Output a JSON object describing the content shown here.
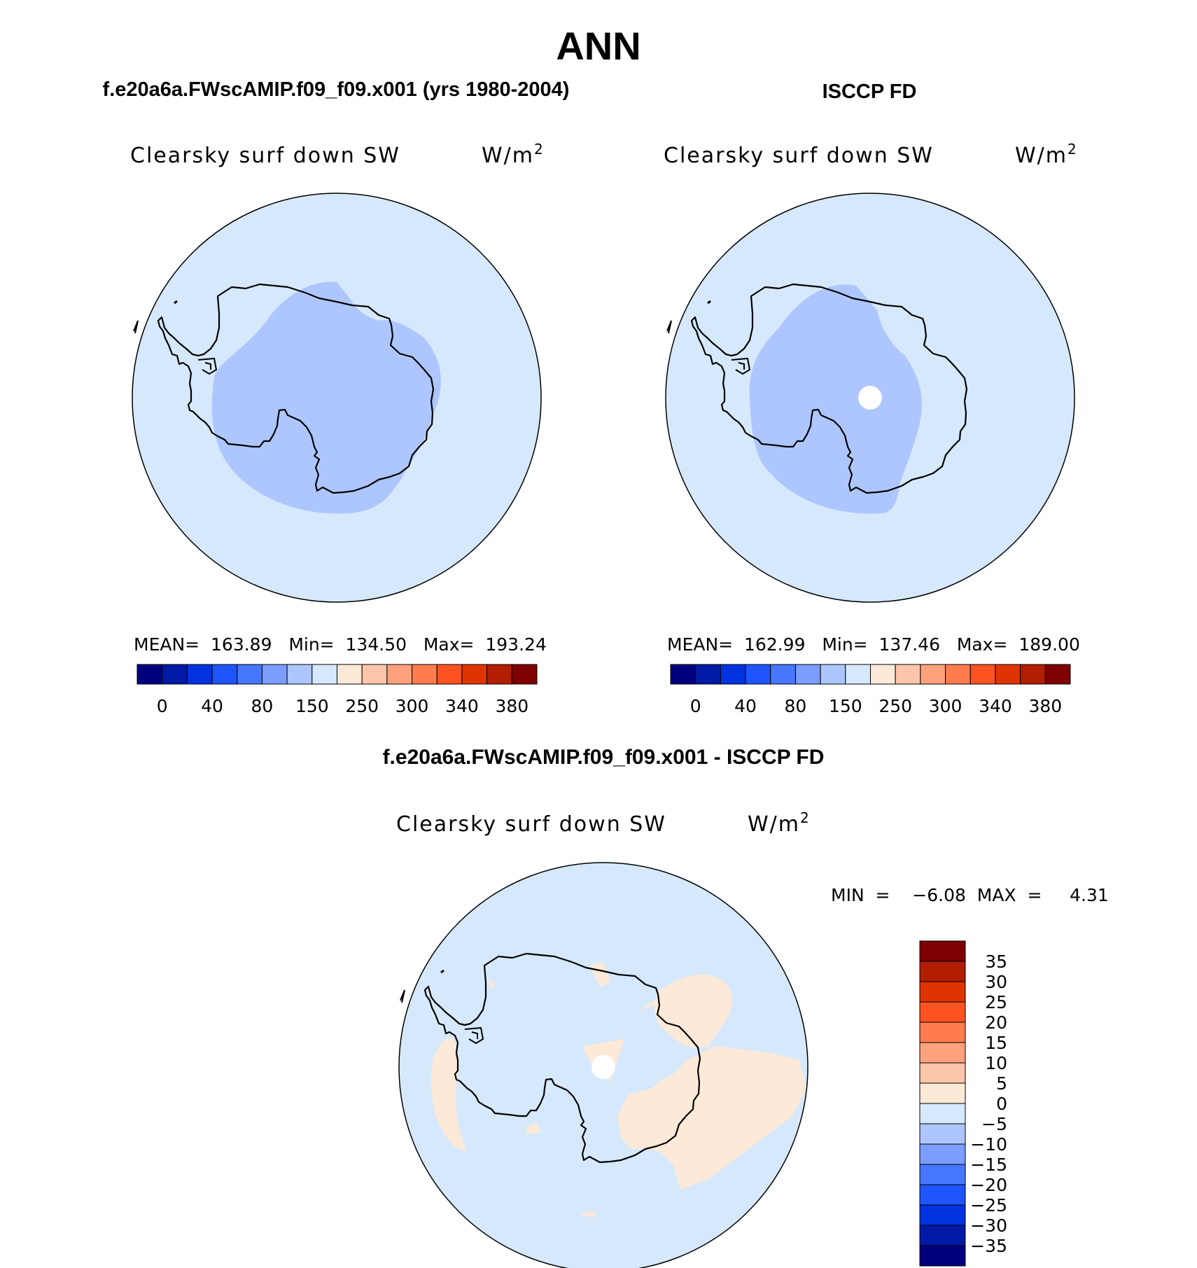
{
  "page": {
    "title": "ANN",
    "bottom_title": "f.e20a6a.FWscAMIP.f09_f09.x001 - ISCCP FD"
  },
  "panels": [
    {
      "id": "model",
      "title": "f.e20a6a.FWscAMIP.f09_f09.x001 (yrs 1980-2004)",
      "variable": "Clearsky surf down SW",
      "units_base": "W/m",
      "units_exp": "2",
      "stats": "MEAN=  163.89   Min=  134.50   Max=  193.24",
      "stats_values": {
        "mean": 163.89,
        "min": 134.5,
        "max": 193.24
      },
      "has_pole_hole": false
    },
    {
      "id": "obs",
      "title": "ISCCP FD",
      "variable": "Clearsky surf down SW",
      "units_base": "W/m",
      "units_exp": "2",
      "stats": "MEAN=  162.99   Min=  137.46   Max=  189.00",
      "stats_values": {
        "mean": 162.99,
        "min": 137.46,
        "max": 189.0
      },
      "has_pole_hole": true
    }
  ],
  "top_colorbar": {
    "tick_labels": [
      "0",
      "40",
      "80",
      "150",
      "250",
      "300",
      "340",
      "380"
    ],
    "colors": [
      "#00007f",
      "#0019a6",
      "#0033e0",
      "#1f55ff",
      "#4877ff",
      "#7b9dff",
      "#aec6ff",
      "#d6e8fb",
      "#fde9d8",
      "#fdc6aa",
      "#fea27d",
      "#fe7c4e",
      "#fe5222",
      "#e03400",
      "#b21e00",
      "#7f0000"
    ]
  },
  "difference": {
    "variable": "Clearsky surf down SW",
    "units_base": "W/m",
    "units_exp": "2",
    "minmax": "MIN  =    −6.08  MAX  =     4.31",
    "min": -6.08,
    "max": 4.31,
    "colorbar_labels": [
      "35",
      "30",
      "25",
      "20",
      "15",
      "10",
      "5",
      "0",
      "−5",
      "−10",
      "−15",
      "−20",
      "−25",
      "−30",
      "−35"
    ],
    "colorbar_colors": [
      "#7f0000",
      "#b21e00",
      "#e03400",
      "#fe5222",
      "#fe7c4e",
      "#fea27d",
      "#fdc6aa",
      "#fde9d8",
      "#d6e8fb",
      "#aec6ff",
      "#7b9dff",
      "#4877ff",
      "#1f55ff",
      "#0033e0",
      "#0019a6",
      "#00007f"
    ]
  },
  "map_colors": {
    "ocean_fill": "#d6e8fb",
    "low_region_fill": "#aec6ff",
    "positive_diff_fill": "#fde9d8",
    "coast": "#000000"
  }
}
